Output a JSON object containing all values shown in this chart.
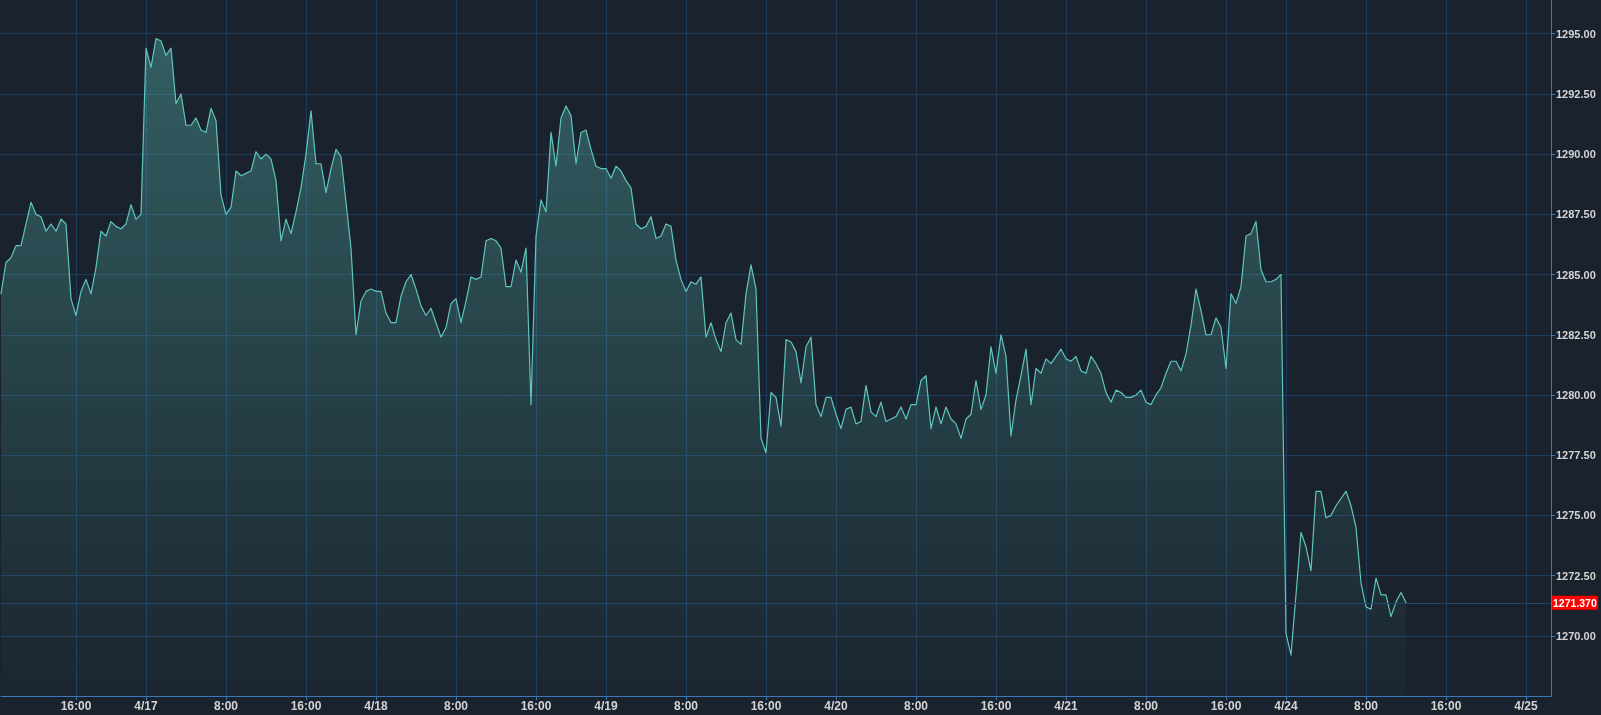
{
  "chart_data": {
    "type": "area",
    "color": "#5fc6bb",
    "marker": "none",
    "grid": true,
    "categories": [
      null,
      null,
      null,
      null,
      null,
      null,
      null,
      null,
      null,
      null,
      null,
      null,
      null,
      null,
      null,
      "16:00",
      null,
      null,
      null,
      null,
      null,
      null,
      null,
      null,
      null,
      null,
      null,
      null,
      null,
      "4/17",
      null,
      null,
      null,
      null,
      null,
      null,
      null,
      null,
      null,
      null,
      null,
      null,
      null,
      null,
      null,
      "8:00",
      null,
      null,
      null,
      null,
      null,
      null,
      null,
      null,
      null,
      null,
      null,
      null,
      null,
      null,
      null,
      "16:00",
      null,
      null,
      null,
      null,
      null,
      null,
      null,
      null,
      null,
      null,
      null,
      null,
      null,
      "4/18",
      null,
      null,
      null,
      null,
      null,
      null,
      null,
      null,
      null,
      null,
      null,
      null,
      null,
      null,
      null,
      "8:00",
      null,
      null,
      null,
      null,
      null,
      null,
      null,
      null,
      null,
      null,
      null,
      null,
      null,
      null,
      null,
      "16:00",
      null,
      null,
      null,
      null,
      null,
      null,
      null,
      null,
      null,
      null,
      null,
      null,
      null,
      "4/19",
      null,
      null,
      null,
      null,
      null,
      null,
      null,
      null,
      null,
      null,
      null,
      null,
      null,
      null,
      null,
      "8:00",
      null,
      null,
      null,
      null,
      null,
      null,
      null,
      null,
      null,
      null,
      null,
      null,
      null,
      null,
      null,
      "16:00",
      null,
      null,
      null,
      null,
      null,
      null,
      null,
      null,
      null,
      null,
      null,
      null,
      null,
      "4/20",
      null,
      null,
      null,
      null,
      null,
      null,
      null,
      null,
      null,
      null,
      null,
      null,
      null,
      null,
      null,
      "8:00",
      null,
      null,
      null,
      null,
      null,
      null,
      null,
      null,
      null,
      null,
      null,
      null,
      null,
      null,
      null,
      "16:00",
      null,
      null,
      null,
      null,
      null,
      null,
      null,
      null,
      null,
      null,
      null,
      null,
      null,
      "4/21",
      null,
      null,
      null,
      null,
      null,
      null,
      null,
      null,
      null,
      null,
      null,
      null,
      null,
      null,
      null,
      "8:00",
      null,
      null,
      null,
      null,
      null,
      null,
      null,
      null,
      null,
      null,
      null,
      null,
      null,
      null,
      null,
      "16:00",
      null,
      null,
      null,
      null,
      null,
      null,
      null,
      null,
      null,
      null,
      null,
      "4/24",
      null,
      null,
      null,
      null,
      null,
      null,
      null,
      null,
      null,
      null,
      null,
      null,
      null,
      null,
      null,
      "8:00",
      null,
      null,
      null,
      null,
      null,
      null,
      null,
      null,
      null,
      null,
      null,
      null,
      null,
      null,
      null,
      "16:00",
      null,
      null,
      null,
      null,
      null,
      null,
      null,
      null,
      null,
      null,
      null,
      null,
      null,
      null,
      null,
      "4/25",
      null,
      null,
      null,
      null,
      null
    ],
    "values": [
      1284.2,
      1285.5,
      1285.7,
      1286.2,
      1286.2,
      1287.1,
      1288.0,
      1287.5,
      1287.4,
      1286.8,
      1287.1,
      1286.8,
      1287.3,
      1287.1,
      1284.0,
      1283.3,
      1284.3,
      1284.8,
      1284.2,
      1285.3,
      1286.8,
      1286.6,
      1287.2,
      1287.0,
      1286.9,
      1287.1,
      1287.9,
      1287.3,
      1287.5,
      1294.4,
      1293.6,
      1294.8,
      1294.7,
      1294.1,
      1294.4,
      1292.1,
      1292.5,
      1291.2,
      1291.2,
      1291.5,
      1291.0,
      1290.9,
      1291.9,
      1291.4,
      1288.3,
      1287.5,
      1287.8,
      1289.3,
      1289.1,
      1289.2,
      1289.3,
      1290.1,
      1289.8,
      1290.0,
      1289.8,
      1288.9,
      1286.4,
      1287.3,
      1286.7,
      1287.6,
      1288.6,
      1290.0,
      1291.8,
      1289.6,
      1289.6,
      1288.4,
      1289.4,
      1290.2,
      1289.9,
      1288.0,
      1286.1,
      1282.5,
      1283.9,
      1284.3,
      1284.4,
      1284.3,
      1284.3,
      1283.4,
      1283.0,
      1283.0,
      1284.1,
      1284.7,
      1285.0,
      1284.4,
      1283.7,
      1283.3,
      1283.6,
      1283.0,
      1282.4,
      1282.8,
      1283.8,
      1284.0,
      1283.0,
      1283.9,
      1284.9,
      1284.8,
      1284.9,
      1286.4,
      1286.5,
      1286.4,
      1286.1,
      1284.5,
      1284.5,
      1285.6,
      1285.1,
      1286.1,
      1279.6,
      1286.6,
      1288.1,
      1287.6,
      1290.9,
      1289.5,
      1291.5,
      1292.0,
      1291.6,
      1289.6,
      1290.9,
      1291.0,
      1290.2,
      1289.5,
      1289.4,
      1289.4,
      1289.0,
      1289.5,
      1289.3,
      1288.9,
      1288.6,
      1287.1,
      1286.9,
      1287.0,
      1287.4,
      1286.5,
      1286.6,
      1287.1,
      1287.0,
      1285.6,
      1284.8,
      1284.3,
      1284.7,
      1284.6,
      1284.9,
      1282.4,
      1283.0,
      1282.3,
      1281.8,
      1283.0,
      1283.4,
      1282.3,
      1282.1,
      1284.2,
      1285.4,
      1284.4,
      1278.2,
      1277.6,
      1280.1,
      1279.9,
      1278.7,
      1282.3,
      1282.2,
      1281.8,
      1280.5,
      1282.0,
      1282.4,
      1279.6,
      1279.1,
      1279.9,
      1279.9,
      1279.2,
      1278.6,
      1279.4,
      1279.5,
      1278.8,
      1278.9,
      1280.4,
      1279.3,
      1279.1,
      1279.7,
      1278.9,
      1279.0,
      1279.1,
      1279.5,
      1279.0,
      1279.6,
      1279.6,
      1280.6,
      1280.8,
      1278.6,
      1279.5,
      1278.8,
      1279.5,
      1279.0,
      1278.8,
      1278.2,
      1279.0,
      1279.2,
      1280.6,
      1279.4,
      1280.0,
      1282.0,
      1280.9,
      1282.5,
      1281.6,
      1278.3,
      1279.8,
      1280.8,
      1281.9,
      1279.6,
      1281.1,
      1280.9,
      1281.5,
      1281.3,
      1281.6,
      1281.9,
      1281.5,
      1281.4,
      1281.6,
      1281.0,
      1280.9,
      1281.6,
      1281.3,
      1280.9,
      1280.1,
      1279.7,
      1280.2,
      1280.1,
      1279.9,
      1279.9,
      1280.0,
      1280.2,
      1279.7,
      1279.6,
      1280.0,
      1280.3,
      1280.9,
      1281.4,
      1281.4,
      1281.0,
      1281.7,
      1282.9,
      1284.4,
      1283.5,
      1282.5,
      1282.5,
      1283.2,
      1282.8,
      1281.1,
      1284.2,
      1283.8,
      1284.5,
      1286.6,
      1286.7,
      1287.2,
      1285.2,
      1284.7,
      1284.7,
      1284.8,
      1285.0,
      1270.1,
      1269.2,
      1271.7,
      1274.3,
      1273.7,
      1272.7,
      1276.0,
      1276.0,
      1274.9,
      1275.0,
      1275.4,
      1275.7,
      1276.0,
      1275.4,
      1274.5,
      1272.2,
      1271.2,
      1271.1,
      1272.4,
      1271.7,
      1271.7,
      1270.8,
      1271.4,
      1271.8,
      1271.37,
      null,
      null,
      null,
      null,
      null,
      null,
      null,
      null,
      null,
      null,
      null,
      null,
      null,
      null,
      null,
      null,
      null,
      null,
      null,
      null,
      null,
      null,
      null,
      null,
      null,
      null,
      null,
      null,
      null
    ],
    "ylim": [
      1267.5,
      1296.4
    ],
    "yticks": [
      {
        "value": 1270,
        "label": "1270.00"
      },
      {
        "value": 1272.5,
        "label": "1272.50"
      },
      {
        "value": 1275,
        "label": "1275.00"
      },
      {
        "value": 1277.5,
        "label": "1277.50"
      },
      {
        "value": 1280,
        "label": "1280.00"
      },
      {
        "value": 1282.5,
        "label": "1282.50"
      },
      {
        "value": 1285,
        "label": "1285.00"
      },
      {
        "value": 1287.5,
        "label": "1287.50"
      },
      {
        "value": 1290,
        "label": "1290.00"
      },
      {
        "value": 1292.5,
        "label": "1292.50"
      },
      {
        "value": 1295,
        "label": "1295.00"
      }
    ],
    "ref_lines": [
      {
        "axis": "y",
        "value": 1271.37,
        "label": "1271.370",
        "color": "#24466b"
      }
    ]
  }
}
